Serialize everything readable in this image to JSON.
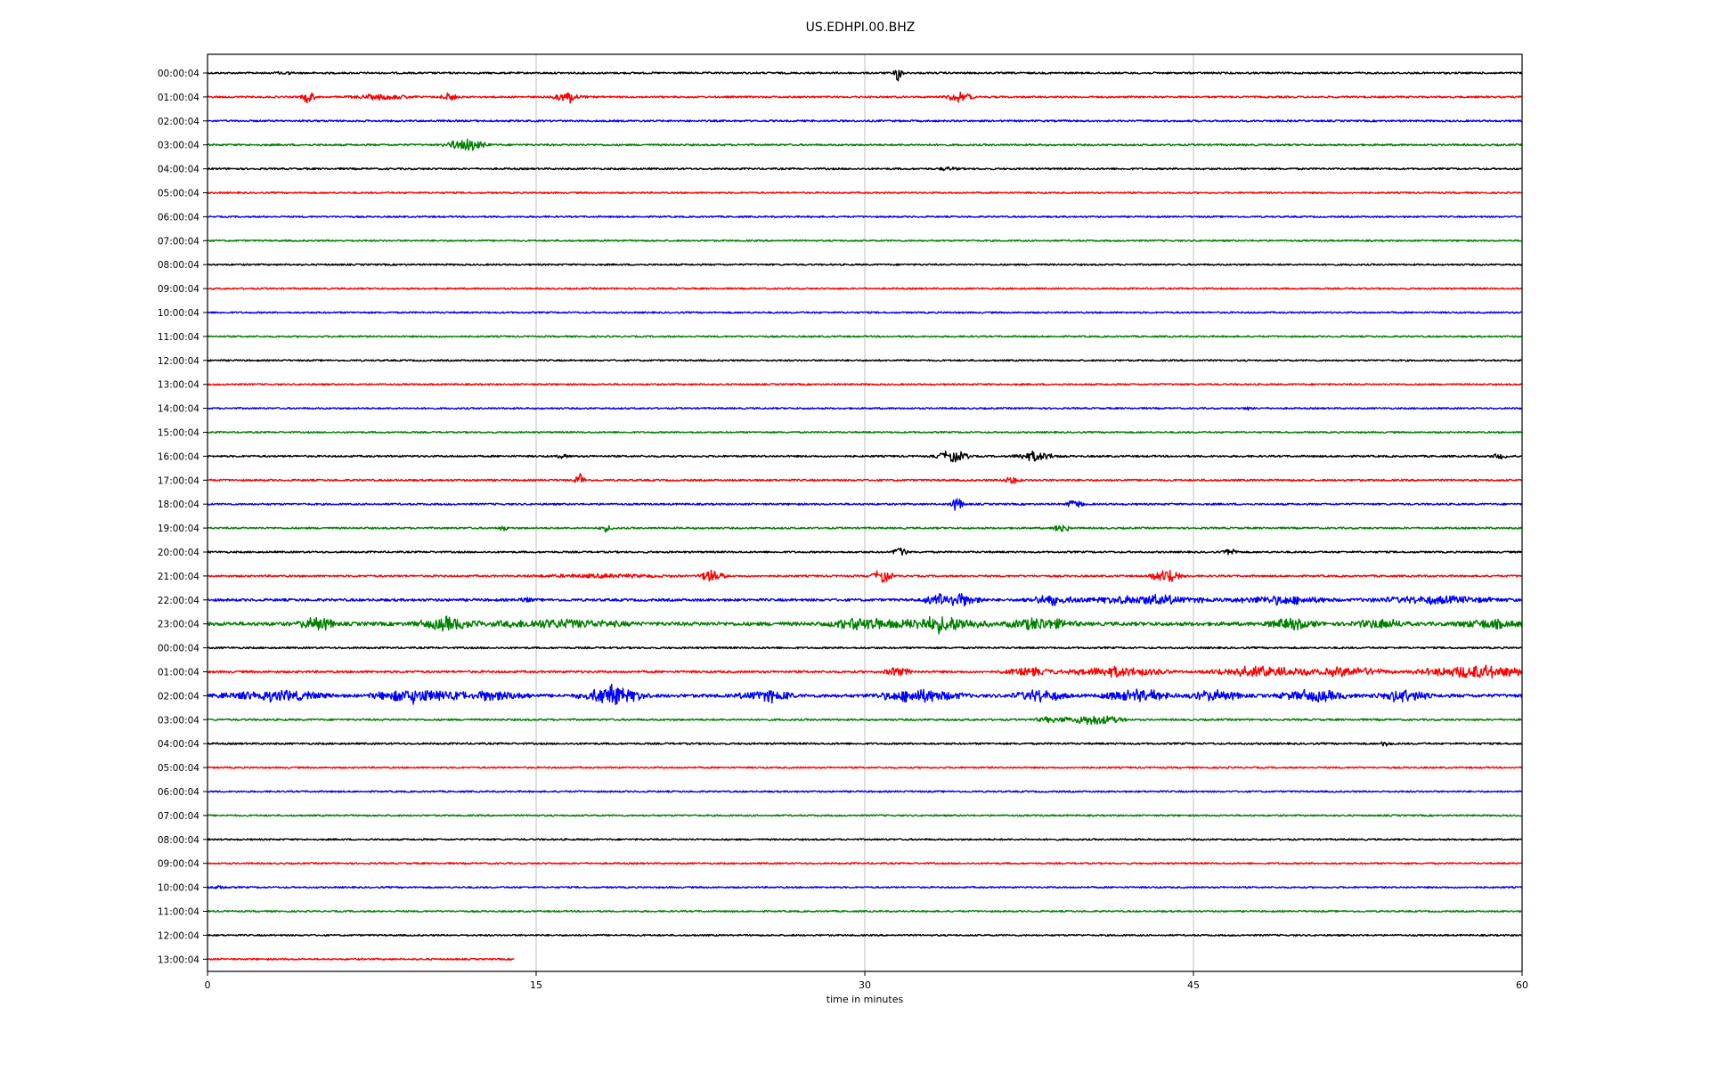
{
  "chart_data": {
    "type": "line",
    "title": "US.EDHPI.00.BHZ",
    "xlabel": "time in minutes",
    "ylabel": "",
    "xlim": [
      0,
      60
    ],
    "x_ticks": [
      "0",
      "15",
      "30",
      "45",
      "60"
    ],
    "x_tick_values": [
      0,
      15,
      30,
      45,
      60
    ],
    "grid": "vertical",
    "legend": "none",
    "color_cycle": [
      "#000000",
      "#ff0000",
      "#0000ff",
      "#008000"
    ],
    "row_labels": [
      "00:00:04",
      "01:00:04",
      "02:00:04",
      "03:00:04",
      "04:00:04",
      "05:00:04",
      "06:00:04",
      "07:00:04",
      "08:00:04",
      "09:00:04",
      "10:00:04",
      "11:00:04",
      "12:00:04",
      "13:00:04",
      "14:00:04",
      "15:00:04",
      "16:00:04",
      "17:00:04",
      "18:00:04",
      "19:00:04",
      "20:00:04",
      "21:00:04",
      "22:00:04",
      "23:00:04",
      "00:00:04",
      "01:00:04",
      "02:00:04",
      "03:00:04",
      "04:00:04",
      "05:00:04",
      "06:00:04",
      "07:00:04",
      "08:00:04",
      "09:00:04",
      "10:00:04",
      "11:00:04",
      "12:00:04",
      "13:00:04"
    ],
    "series": [
      {
        "row": 0,
        "end_minute": 60,
        "noise": 0.25,
        "events": [
          {
            "t": 3.5,
            "a": 0.6,
            "d": 0.5
          },
          {
            "t": 31.5,
            "a": 2.8,
            "d": 0.3
          }
        ]
      },
      {
        "row": 1,
        "end_minute": 60,
        "noise": 0.25,
        "events": [
          {
            "t": 4.6,
            "a": 2.0,
            "d": 0.4
          },
          {
            "t": 8.0,
            "a": 0.8,
            "d": 1.8
          },
          {
            "t": 11.0,
            "a": 1.2,
            "d": 0.5
          },
          {
            "t": 16.5,
            "a": 1.7,
            "d": 0.9
          },
          {
            "t": 34.3,
            "a": 1.5,
            "d": 0.8
          }
        ]
      },
      {
        "row": 2,
        "end_minute": 60,
        "noise": 0.25,
        "events": []
      },
      {
        "row": 3,
        "end_minute": 60,
        "noise": 0.25,
        "events": [
          {
            "t": 11.8,
            "a": 2.0,
            "d": 1.2
          }
        ]
      },
      {
        "row": 4,
        "end_minute": 60,
        "noise": 0.25,
        "events": [
          {
            "t": 33.8,
            "a": 0.5,
            "d": 0.6
          }
        ]
      },
      {
        "row": 5,
        "end_minute": 60,
        "noise": 0.22,
        "events": []
      },
      {
        "row": 6,
        "end_minute": 60,
        "noise": 0.22,
        "events": []
      },
      {
        "row": 7,
        "end_minute": 60,
        "noise": 0.22,
        "events": []
      },
      {
        "row": 8,
        "end_minute": 60,
        "noise": 0.22,
        "events": []
      },
      {
        "row": 9,
        "end_minute": 60,
        "noise": 0.22,
        "events": []
      },
      {
        "row": 10,
        "end_minute": 60,
        "noise": 0.22,
        "events": []
      },
      {
        "row": 11,
        "end_minute": 60,
        "noise": 0.22,
        "events": []
      },
      {
        "row": 12,
        "end_minute": 60,
        "noise": 0.22,
        "events": []
      },
      {
        "row": 13,
        "end_minute": 60,
        "noise": 0.22,
        "events": []
      },
      {
        "row": 14,
        "end_minute": 60,
        "noise": 0.22,
        "events": [
          {
            "t": 47.5,
            "a": 0.4,
            "d": 0.3
          }
        ]
      },
      {
        "row": 15,
        "end_minute": 60,
        "noise": 0.22,
        "events": []
      },
      {
        "row": 16,
        "end_minute": 60,
        "noise": 0.25,
        "events": [
          {
            "t": 16.2,
            "a": 0.5,
            "d": 0.4
          },
          {
            "t": 34.0,
            "a": 1.8,
            "d": 1.0
          },
          {
            "t": 37.8,
            "a": 1.6,
            "d": 1.2
          },
          {
            "t": 59.0,
            "a": 0.8,
            "d": 0.5
          }
        ]
      },
      {
        "row": 17,
        "end_minute": 60,
        "noise": 0.25,
        "events": [
          {
            "t": 17.0,
            "a": 2.0,
            "d": 0.3
          },
          {
            "t": 36.7,
            "a": 1.2,
            "d": 0.5
          }
        ]
      },
      {
        "row": 18,
        "end_minute": 60,
        "noise": 0.25,
        "events": [
          {
            "t": 34.2,
            "a": 2.0,
            "d": 0.4
          },
          {
            "t": 39.6,
            "a": 1.4,
            "d": 0.5
          }
        ]
      },
      {
        "row": 19,
        "end_minute": 60,
        "noise": 0.25,
        "events": [
          {
            "t": 13.5,
            "a": 0.7,
            "d": 0.3
          },
          {
            "t": 18.2,
            "a": 1.0,
            "d": 0.4
          },
          {
            "t": 39.0,
            "a": 1.5,
            "d": 0.5
          }
        ]
      },
      {
        "row": 20,
        "end_minute": 60,
        "noise": 0.25,
        "events": [
          {
            "t": 31.6,
            "a": 2.0,
            "d": 0.4
          },
          {
            "t": 46.7,
            "a": 1.3,
            "d": 0.4
          }
        ]
      },
      {
        "row": 21,
        "end_minute": 60,
        "noise": 0.25,
        "events": [
          {
            "t": 18.0,
            "a": 0.5,
            "d": 4.0
          },
          {
            "t": 23.0,
            "a": 2.2,
            "d": 0.8
          },
          {
            "t": 30.8,
            "a": 2.2,
            "d": 0.6
          },
          {
            "t": 43.8,
            "a": 2.5,
            "d": 1.0
          }
        ]
      },
      {
        "row": 22,
        "end_minute": 60,
        "noise": 0.35,
        "events": [
          {
            "t": 14.5,
            "a": 0.8,
            "d": 0.4
          },
          {
            "t": 34.0,
            "a": 2.6,
            "d": 1.6
          },
          {
            "t": 38.5,
            "a": 1.6,
            "d": 1.5
          },
          {
            "t": 43.0,
            "a": 1.6,
            "d": 3.5
          },
          {
            "t": 49.0,
            "a": 1.3,
            "d": 3.0
          },
          {
            "t": 56.0,
            "a": 1.1,
            "d": 4.0
          }
        ]
      },
      {
        "row": 23,
        "end_minute": 60,
        "noise": 0.5,
        "events": [
          {
            "t": 5.0,
            "a": 2.2,
            "d": 1.0
          },
          {
            "t": 11.0,
            "a": 2.0,
            "d": 1.8
          },
          {
            "t": 16.0,
            "a": 1.3,
            "d": 4.0
          },
          {
            "t": 30.0,
            "a": 2.0,
            "d": 2.0
          },
          {
            "t": 33.5,
            "a": 2.5,
            "d": 2.5
          },
          {
            "t": 38.0,
            "a": 1.8,
            "d": 2.0
          },
          {
            "t": 49.5,
            "a": 1.5,
            "d": 1.5
          },
          {
            "t": 53.5,
            "a": 1.5,
            "d": 1.5
          },
          {
            "t": 58.5,
            "a": 1.2,
            "d": 2.0
          }
        ]
      },
      {
        "row": 24,
        "end_minute": 60,
        "noise": 0.25,
        "events": []
      },
      {
        "row": 25,
        "end_minute": 60,
        "noise": 0.3,
        "events": [
          {
            "t": 31.5,
            "a": 1.5,
            "d": 0.8
          },
          {
            "t": 37.5,
            "a": 1.3,
            "d": 1.5
          },
          {
            "t": 41.5,
            "a": 1.6,
            "d": 3.0
          },
          {
            "t": 48.0,
            "a": 1.8,
            "d": 3.0
          },
          {
            "t": 52.0,
            "a": 1.5,
            "d": 2.5
          },
          {
            "t": 58.0,
            "a": 2.2,
            "d": 3.5
          }
        ]
      },
      {
        "row": 26,
        "end_minute": 60,
        "noise": 0.45,
        "events": [
          {
            "t": 3.0,
            "a": 1.6,
            "d": 3.0
          },
          {
            "t": 9.5,
            "a": 2.2,
            "d": 2.5
          },
          {
            "t": 13.0,
            "a": 1.6,
            "d": 2.0
          },
          {
            "t": 18.5,
            "a": 3.0,
            "d": 1.8
          },
          {
            "t": 25.5,
            "a": 2.0,
            "d": 1.5
          },
          {
            "t": 32.5,
            "a": 2.0,
            "d": 2.5
          },
          {
            "t": 38.0,
            "a": 1.8,
            "d": 1.5
          },
          {
            "t": 42.5,
            "a": 2.0,
            "d": 2.0
          },
          {
            "t": 46.0,
            "a": 1.6,
            "d": 1.5
          },
          {
            "t": 50.5,
            "a": 1.8,
            "d": 2.0
          },
          {
            "t": 54.5,
            "a": 2.0,
            "d": 1.5
          }
        ]
      },
      {
        "row": 27,
        "end_minute": 60,
        "noise": 0.25,
        "events": [
          {
            "t": 38.5,
            "a": 0.8,
            "d": 1.0
          },
          {
            "t": 40.5,
            "a": 1.8,
            "d": 1.6
          }
        ]
      },
      {
        "row": 28,
        "end_minute": 60,
        "noise": 0.25,
        "events": [
          {
            "t": 53.8,
            "a": 1.0,
            "d": 0.3
          }
        ]
      },
      {
        "row": 29,
        "end_minute": 60,
        "noise": 0.22,
        "events": []
      },
      {
        "row": 30,
        "end_minute": 60,
        "noise": 0.22,
        "events": []
      },
      {
        "row": 31,
        "end_minute": 60,
        "noise": 0.22,
        "events": []
      },
      {
        "row": 32,
        "end_minute": 60,
        "noise": 0.22,
        "events": []
      },
      {
        "row": 33,
        "end_minute": 60,
        "noise": 0.22,
        "events": []
      },
      {
        "row": 34,
        "end_minute": 60,
        "noise": 0.22,
        "events": [
          {
            "t": 0.5,
            "a": 0.5,
            "d": 0.5
          }
        ]
      },
      {
        "row": 35,
        "end_minute": 60,
        "noise": 0.22,
        "events": []
      },
      {
        "row": 36,
        "end_minute": 60,
        "noise": 0.22,
        "events": []
      },
      {
        "row": 37,
        "end_minute": 14,
        "noise": 0.22,
        "events": []
      }
    ]
  }
}
